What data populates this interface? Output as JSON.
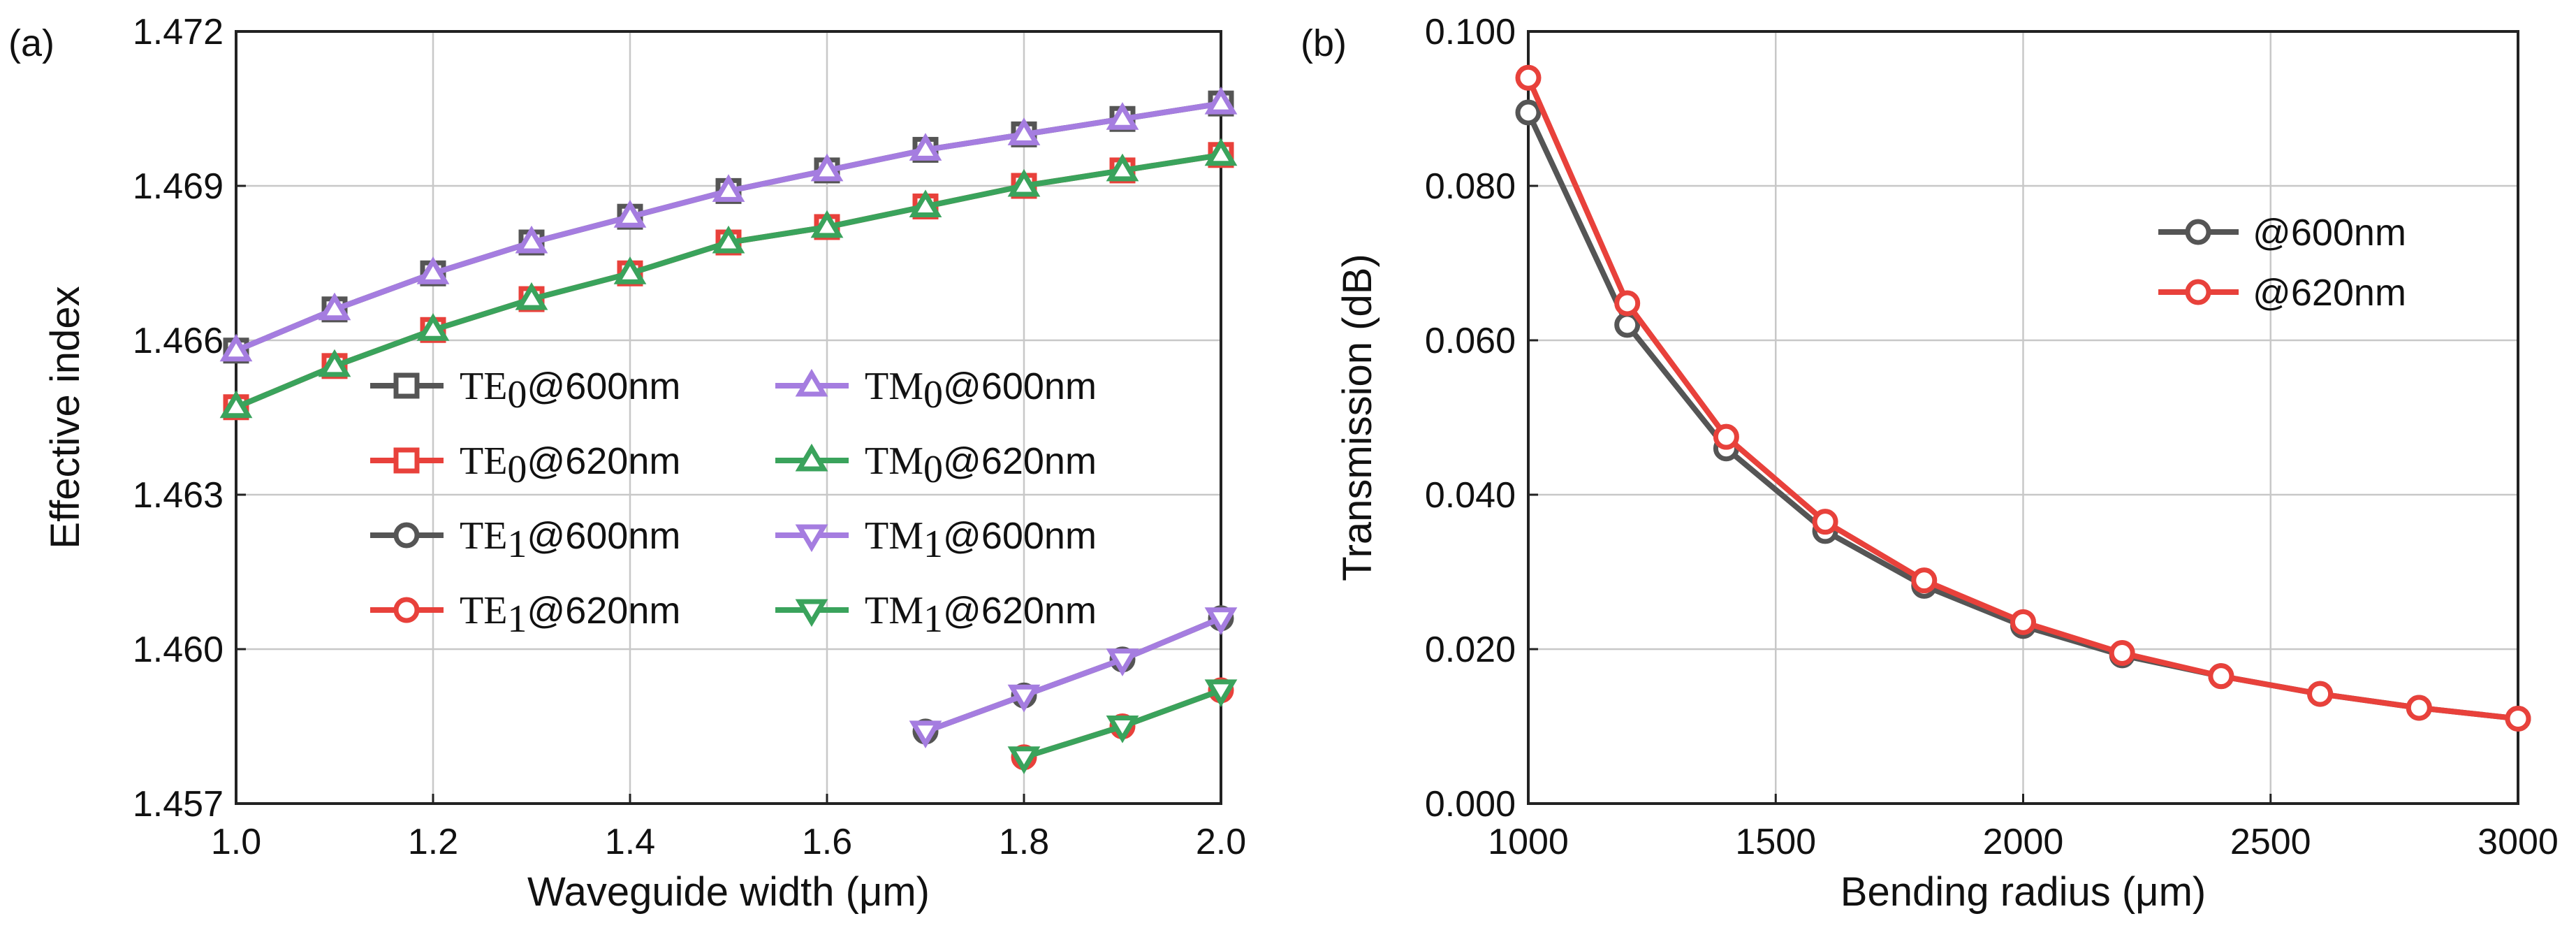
{
  "chart_data": [
    {
      "type": "line",
      "panel_label": "(a)",
      "xlabel": "Waveguide width (μm)",
      "ylabel": "Effective index",
      "xlim": [
        1.0,
        2.0
      ],
      "ylim": [
        1.457,
        1.472
      ],
      "xticks": [
        "1.0",
        "1.2",
        "1.4",
        "1.6",
        "1.8",
        "2.0"
      ],
      "yticks": [
        "1.457",
        "1.460",
        "1.463",
        "1.466",
        "1.469",
        "1.472"
      ],
      "grid": true,
      "legend_position": "center-right",
      "series": [
        {
          "name": "TE0@600nm",
          "base": "TE",
          "sub": "0",
          "suffix": "@600nm",
          "color": "#555555",
          "marker": "square",
          "x": [
            1.0,
            1.1,
            1.2,
            1.3,
            1.4,
            1.5,
            1.6,
            1.7,
            1.8,
            1.9,
            2.0
          ],
          "y": [
            1.4658,
            1.4666,
            1.4673,
            1.4679,
            1.4684,
            1.4689,
            1.4693,
            1.4697,
            1.47,
            1.4703,
            1.4706
          ]
        },
        {
          "name": "TE0@620nm",
          "base": "TE",
          "sub": "0",
          "suffix": "@620nm",
          "color": "#e8413b",
          "marker": "square",
          "x": [
            1.0,
            1.1,
            1.2,
            1.3,
            1.4,
            1.5,
            1.6,
            1.7,
            1.8,
            1.9,
            2.0
          ],
          "y": [
            1.4647,
            1.4655,
            1.4662,
            1.4668,
            1.4673,
            1.4679,
            1.4682,
            1.4686,
            1.469,
            1.4693,
            1.4696
          ]
        },
        {
          "name": "TE1@600nm",
          "base": "TE",
          "sub": "1",
          "suffix": "@600nm",
          "color": "#555555",
          "marker": "circle",
          "x": [
            1.7,
            1.8,
            1.9,
            2.0
          ],
          "y": [
            1.4584,
            1.4591,
            1.4598,
            1.4606
          ]
        },
        {
          "name": "TE1@620nm",
          "base": "TE",
          "sub": "1",
          "suffix": "@620nm",
          "color": "#e8413b",
          "marker": "circle",
          "x": [
            1.8,
            1.9,
            2.0
          ],
          "y": [
            1.4579,
            1.4585,
            1.4592
          ]
        },
        {
          "name": "TM0@600nm",
          "base": "TM",
          "sub": "0",
          "suffix": "@600nm",
          "color": "#a57de0",
          "marker": "triangle-up",
          "x": [
            1.0,
            1.1,
            1.2,
            1.3,
            1.4,
            1.5,
            1.6,
            1.7,
            1.8,
            1.9,
            2.0
          ],
          "y": [
            1.4658,
            1.4666,
            1.4673,
            1.4679,
            1.4684,
            1.4689,
            1.4693,
            1.4697,
            1.47,
            1.4703,
            1.4706
          ]
        },
        {
          "name": "TM0@620nm",
          "base": "TM",
          "sub": "0",
          "suffix": "@620nm",
          "color": "#3aa35c",
          "marker": "triangle-up",
          "x": [
            1.0,
            1.1,
            1.2,
            1.3,
            1.4,
            1.5,
            1.6,
            1.7,
            1.8,
            1.9,
            2.0
          ],
          "y": [
            1.4647,
            1.4655,
            1.4662,
            1.4668,
            1.4673,
            1.4679,
            1.4682,
            1.4686,
            1.469,
            1.4693,
            1.4696
          ]
        },
        {
          "name": "TM1@600nm",
          "base": "TM",
          "sub": "1",
          "suffix": "@600nm",
          "color": "#a57de0",
          "marker": "triangle-down",
          "x": [
            1.7,
            1.8,
            1.9,
            2.0
          ],
          "y": [
            1.4584,
            1.4591,
            1.4598,
            1.4606
          ]
        },
        {
          "name": "TM1@620nm",
          "base": "TM",
          "sub": "1",
          "suffix": "@620nm",
          "color": "#3aa35c",
          "marker": "triangle-down",
          "x": [
            1.8,
            1.9,
            2.0
          ],
          "y": [
            1.4579,
            1.4585,
            1.4592
          ]
        }
      ]
    },
    {
      "type": "line",
      "panel_label": "(b)",
      "xlabel": "Bending radius (μm)",
      "ylabel": "Transmission (dB)",
      "xlim": [
        1000,
        3000
      ],
      "ylim": [
        0.0,
        0.1
      ],
      "xticks": [
        "1000",
        "1500",
        "2000",
        "2500",
        "3000"
      ],
      "yticks": [
        "0.000",
        "0.020",
        "0.040",
        "0.060",
        "0.080",
        "0.100"
      ],
      "grid": true,
      "legend_position": "upper-right",
      "series": [
        {
          "name": "@600nm",
          "color": "#555555",
          "marker": "circle",
          "x": [
            1000,
            1200,
            1400,
            1600,
            1800,
            2000,
            2200,
            2400,
            2600,
            2800,
            3000
          ],
          "y": [
            0.0895,
            0.062,
            0.046,
            0.0353,
            0.0282,
            0.023,
            0.0192,
            0.0165,
            0.0142,
            0.0124,
            0.011
          ]
        },
        {
          "name": "@620nm",
          "color": "#e8413b",
          "marker": "circle",
          "x": [
            1000,
            1200,
            1400,
            1600,
            1800,
            2000,
            2200,
            2400,
            2600,
            2800,
            3000
          ],
          "y": [
            0.094,
            0.0648,
            0.0475,
            0.0365,
            0.0289,
            0.0235,
            0.0195,
            0.0165,
            0.0142,
            0.0124,
            0.011
          ]
        }
      ]
    }
  ]
}
